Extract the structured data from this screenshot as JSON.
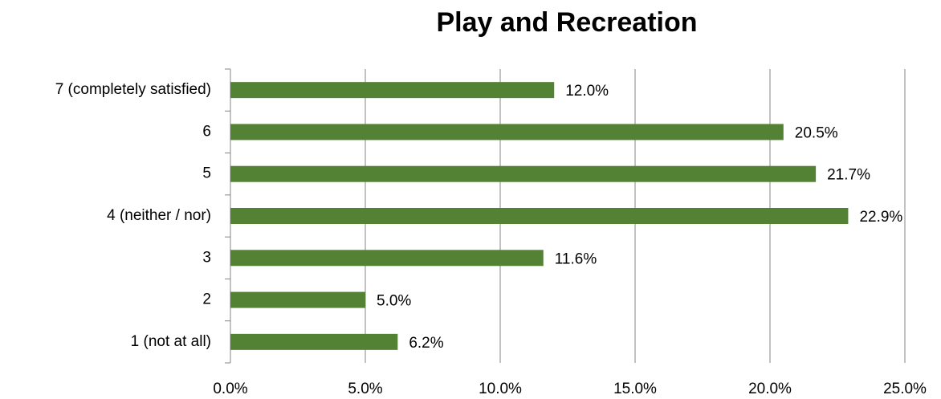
{
  "chart_data": {
    "type": "hbar",
    "title": "Play and Recreation",
    "categories": [
      "7 (completely satisfied)",
      "6",
      "5",
      "4 (neither / nor)",
      "3",
      "2",
      "1 (not at all)"
    ],
    "values": [
      12.0,
      20.5,
      21.7,
      22.9,
      11.6,
      5.0,
      6.2
    ],
    "value_labels": [
      "12.0%",
      "20.5%",
      "21.7%",
      "22.9%",
      "11.6%",
      "5.0%",
      "6.2%"
    ],
    "color": "#548235",
    "xlim": [
      0,
      25
    ],
    "xticks": [
      {
        "value": 0,
        "label": "0.0%"
      },
      {
        "value": 5,
        "label": "5.0%"
      },
      {
        "value": 10,
        "label": "10.0%"
      },
      {
        "value": 15,
        "label": "15.0%"
      },
      {
        "value": 20,
        "label": "20.0%"
      },
      {
        "value": 25,
        "label": "25.0%"
      }
    ],
    "grid": true
  }
}
